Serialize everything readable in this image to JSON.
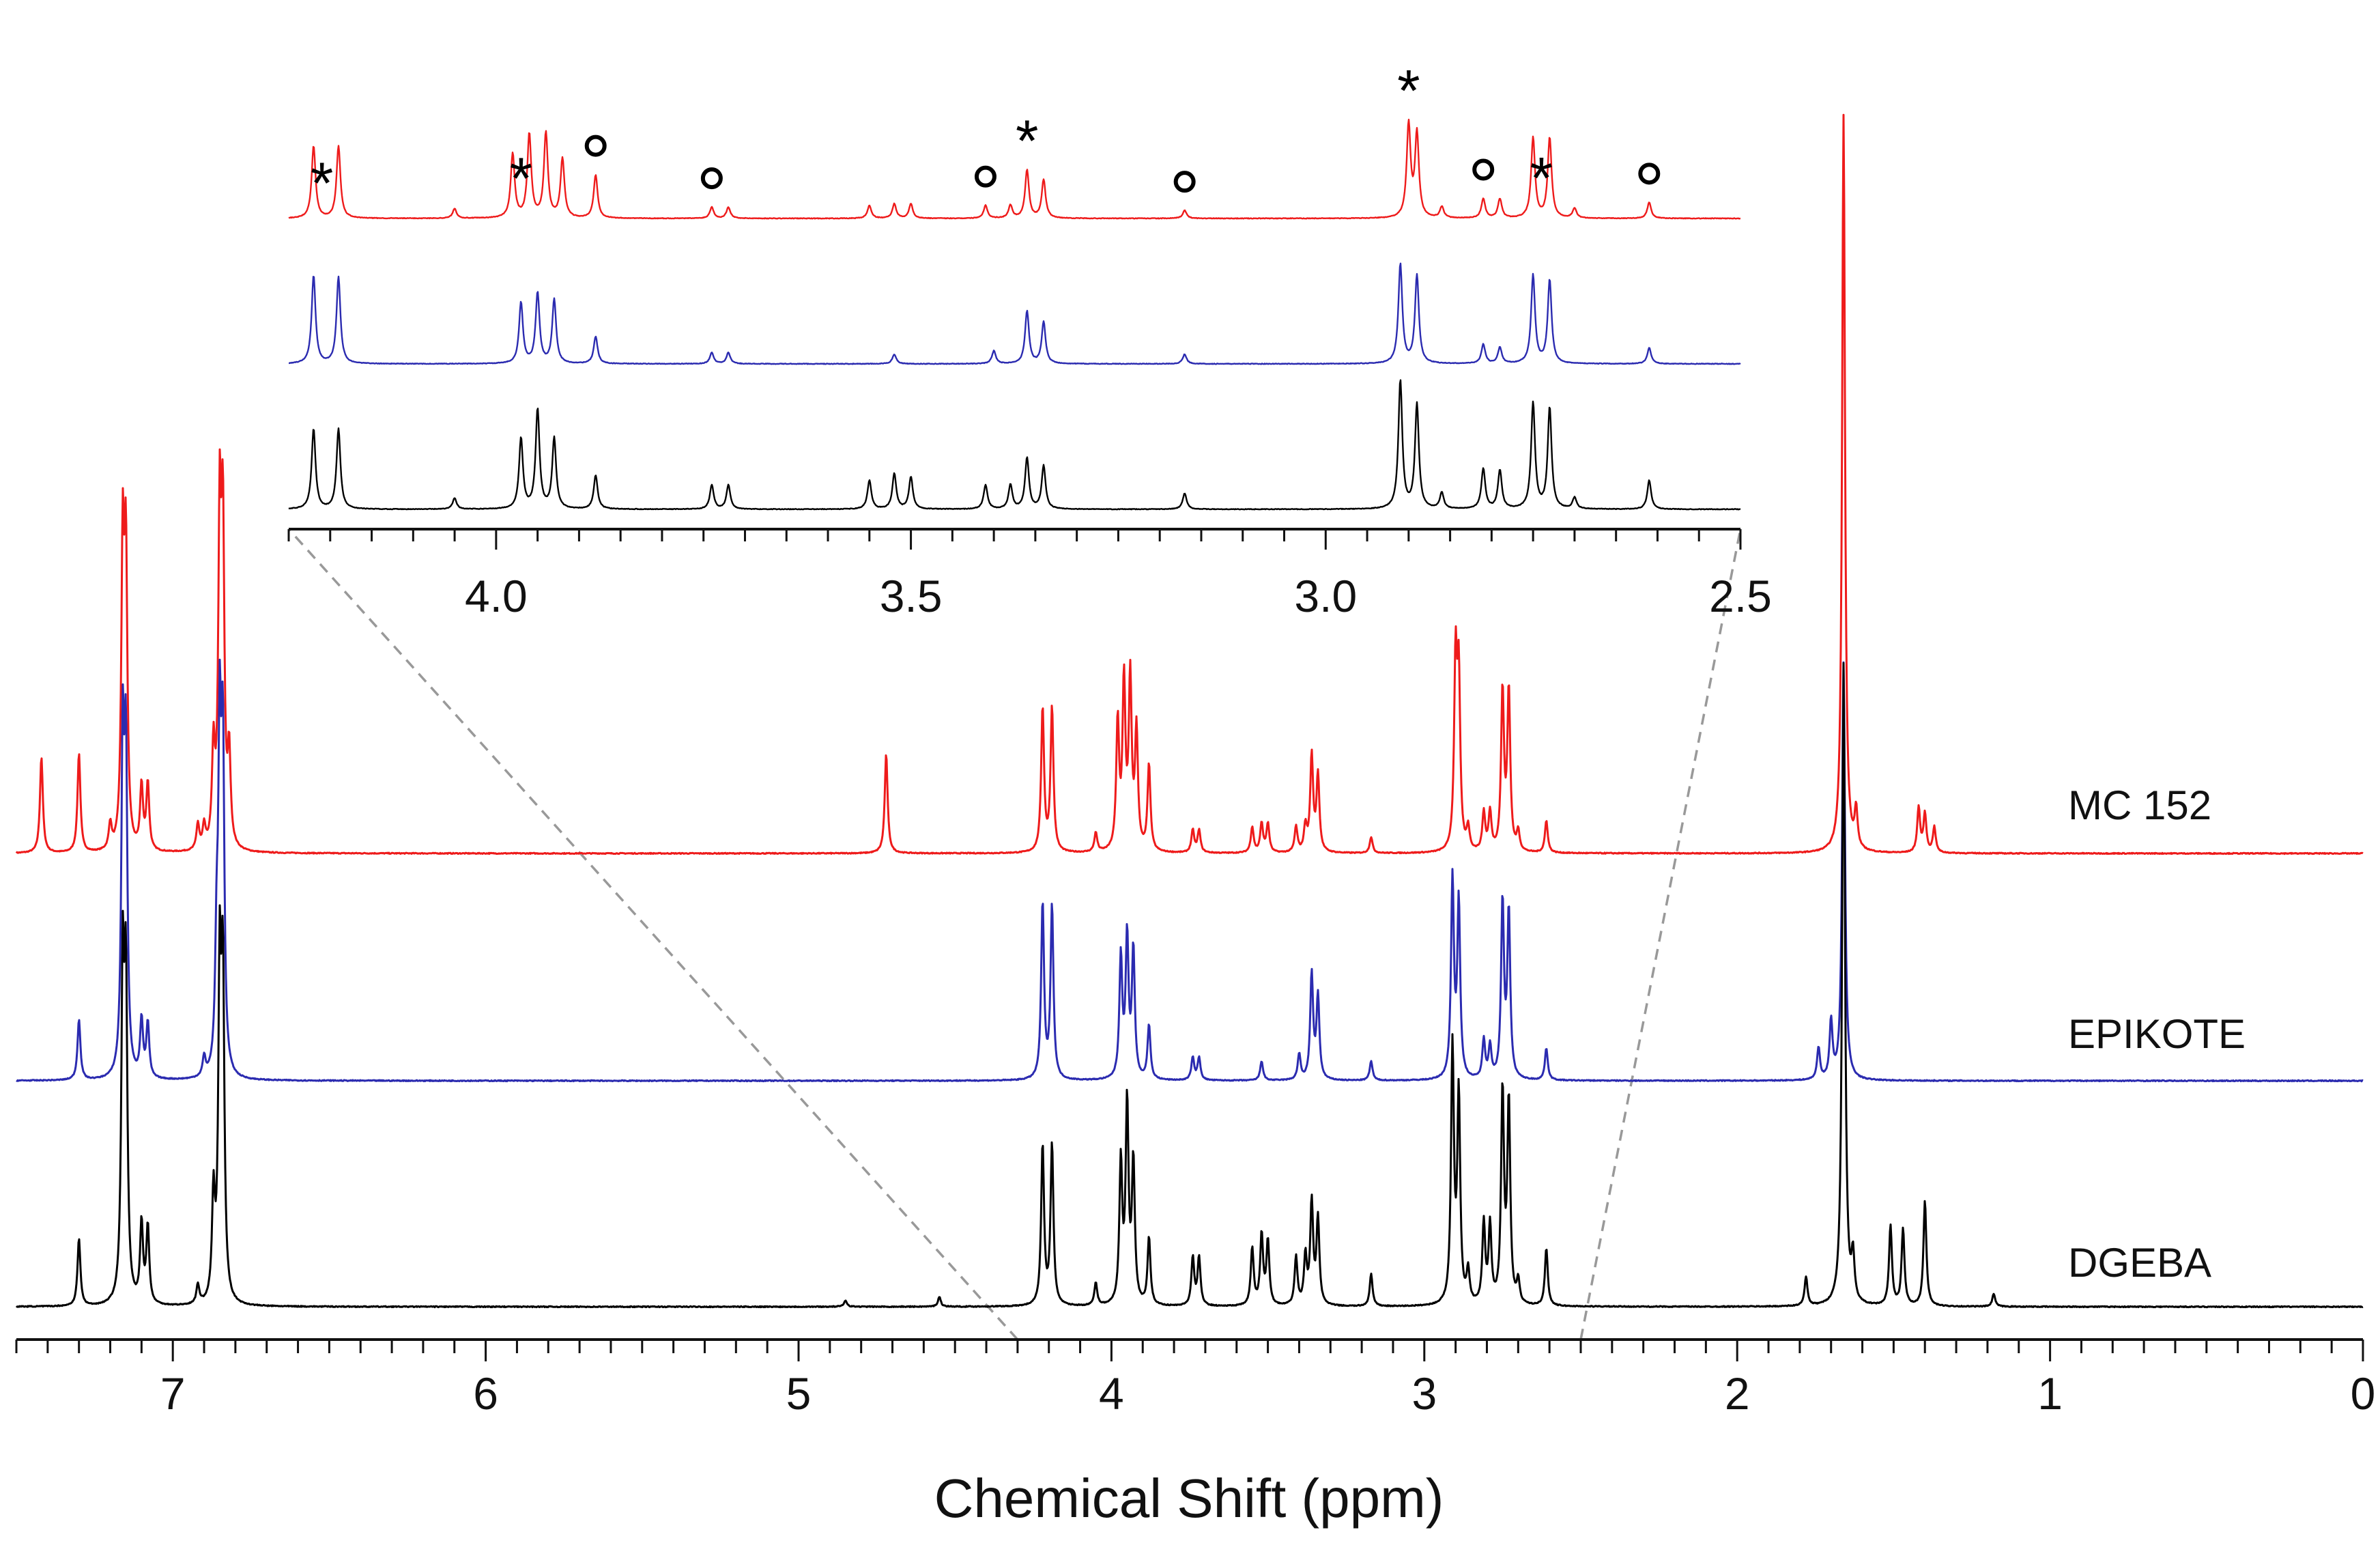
{
  "chart_data": {
    "type": "line",
    "title": "",
    "xlabel": "Chemical Shift (ppm)",
    "ylabel": "",
    "x_reversed": true,
    "xlim": [
      7.5,
      0
    ],
    "x_ticks": [
      "7",
      "6",
      "5",
      "4",
      "3",
      "2",
      "1",
      "0"
    ],
    "x_tick_values": [
      7,
      6,
      5,
      4,
      3,
      2,
      1,
      0
    ],
    "series": [
      {
        "name": "MC 152",
        "color": "#ee1b1b",
        "peaks": [
          {
            "x": 7.42,
            "h": 0.3
          },
          {
            "x": 7.3,
            "h": 0.31
          },
          {
            "x": 7.2,
            "h": 0.08
          },
          {
            "x": 7.16,
            "h": 0.92
          },
          {
            "x": 7.15,
            "h": 0.88
          },
          {
            "x": 7.1,
            "h": 0.2
          },
          {
            "x": 7.08,
            "h": 0.21
          },
          {
            "x": 6.92,
            "h": 0.08
          },
          {
            "x": 6.9,
            "h": 0.07
          },
          {
            "x": 6.87,
            "h": 0.3
          },
          {
            "x": 6.85,
            "h": 1.0
          },
          {
            "x": 6.84,
            "h": 0.96
          },
          {
            "x": 6.82,
            "h": 0.28
          },
          {
            "x": 4.72,
            "h": 0.31
          },
          {
            "x": 4.22,
            "h": 0.45
          },
          {
            "x": 4.19,
            "h": 0.45
          },
          {
            "x": 4.05,
            "h": 0.06
          },
          {
            "x": 3.98,
            "h": 0.4
          },
          {
            "x": 3.96,
            "h": 0.52
          },
          {
            "x": 3.94,
            "h": 0.53
          },
          {
            "x": 3.92,
            "h": 0.37
          },
          {
            "x": 3.88,
            "h": 0.27
          },
          {
            "x": 3.74,
            "h": 0.07
          },
          {
            "x": 3.72,
            "h": 0.07
          },
          {
            "x": 3.55,
            "h": 0.08
          },
          {
            "x": 3.52,
            "h": 0.09
          },
          {
            "x": 3.5,
            "h": 0.09
          },
          {
            "x": 3.41,
            "h": 0.08
          },
          {
            "x": 3.38,
            "h": 0.08
          },
          {
            "x": 3.36,
            "h": 0.3
          },
          {
            "x": 3.34,
            "h": 0.24
          },
          {
            "x": 3.17,
            "h": 0.05
          },
          {
            "x": 2.9,
            "h": 0.58
          },
          {
            "x": 2.89,
            "h": 0.52
          },
          {
            "x": 2.86,
            "h": 0.07
          },
          {
            "x": 2.81,
            "h": 0.12
          },
          {
            "x": 2.79,
            "h": 0.12
          },
          {
            "x": 2.75,
            "h": 0.5
          },
          {
            "x": 2.73,
            "h": 0.5
          },
          {
            "x": 2.7,
            "h": 0.06
          },
          {
            "x": 2.61,
            "h": 0.1
          },
          {
            "x": 1.66,
            "h": 2.3
          },
          {
            "x": 1.62,
            "h": 0.12
          },
          {
            "x": 1.42,
            "h": 0.14
          },
          {
            "x": 1.4,
            "h": 0.12
          },
          {
            "x": 1.37,
            "h": 0.08
          }
        ]
      },
      {
        "name": "EPIKOTE",
        "color": "#2b2bb0",
        "peaks": [
          {
            "x": 7.3,
            "h": 0.19
          },
          {
            "x": 7.16,
            "h": 1.0
          },
          {
            "x": 7.15,
            "h": 0.96
          },
          {
            "x": 7.1,
            "h": 0.18
          },
          {
            "x": 7.08,
            "h": 0.17
          },
          {
            "x": 6.9,
            "h": 0.06
          },
          {
            "x": 6.86,
            "h": 0.35
          },
          {
            "x": 6.85,
            "h": 1.0
          },
          {
            "x": 6.84,
            "h": 0.98
          },
          {
            "x": 4.22,
            "h": 0.55
          },
          {
            "x": 4.19,
            "h": 0.54
          },
          {
            "x": 3.97,
            "h": 0.38
          },
          {
            "x": 3.95,
            "h": 0.44
          },
          {
            "x": 3.93,
            "h": 0.4
          },
          {
            "x": 3.88,
            "h": 0.17
          },
          {
            "x": 3.74,
            "h": 0.07
          },
          {
            "x": 3.72,
            "h": 0.07
          },
          {
            "x": 3.52,
            "h": 0.06
          },
          {
            "x": 3.4,
            "h": 0.08
          },
          {
            "x": 3.36,
            "h": 0.33
          },
          {
            "x": 3.34,
            "h": 0.26
          },
          {
            "x": 3.17,
            "h": 0.06
          },
          {
            "x": 2.91,
            "h": 0.62
          },
          {
            "x": 2.89,
            "h": 0.55
          },
          {
            "x": 2.81,
            "h": 0.12
          },
          {
            "x": 2.79,
            "h": 0.1
          },
          {
            "x": 2.75,
            "h": 0.55
          },
          {
            "x": 2.73,
            "h": 0.52
          },
          {
            "x": 2.61,
            "h": 0.1
          },
          {
            "x": 1.74,
            "h": 0.1
          },
          {
            "x": 1.7,
            "h": 0.18
          },
          {
            "x": 1.66,
            "h": 1.3
          }
        ]
      },
      {
        "name": "DGEBA",
        "color": "#000000",
        "peaks": [
          {
            "x": 7.3,
            "h": 0.21
          },
          {
            "x": 7.16,
            "h": 1.0
          },
          {
            "x": 7.15,
            "h": 0.95
          },
          {
            "x": 7.1,
            "h": 0.25
          },
          {
            "x": 7.08,
            "h": 0.24
          },
          {
            "x": 6.92,
            "h": 0.06
          },
          {
            "x": 6.87,
            "h": 0.32
          },
          {
            "x": 6.85,
            "h": 1.0
          },
          {
            "x": 6.84,
            "h": 0.97
          },
          {
            "x": 4.85,
            "h": 0.02
          },
          {
            "x": 4.55,
            "h": 0.03
          },
          {
            "x": 4.22,
            "h": 0.5
          },
          {
            "x": 4.19,
            "h": 0.5
          },
          {
            "x": 4.05,
            "h": 0.07
          },
          {
            "x": 3.97,
            "h": 0.44
          },
          {
            "x": 3.95,
            "h": 0.62
          },
          {
            "x": 3.93,
            "h": 0.44
          },
          {
            "x": 3.88,
            "h": 0.21
          },
          {
            "x": 3.74,
            "h": 0.15
          },
          {
            "x": 3.72,
            "h": 0.15
          },
          {
            "x": 3.55,
            "h": 0.18
          },
          {
            "x": 3.52,
            "h": 0.22
          },
          {
            "x": 3.5,
            "h": 0.2
          },
          {
            "x": 3.41,
            "h": 0.15
          },
          {
            "x": 3.38,
            "h": 0.15
          },
          {
            "x": 3.36,
            "h": 0.32
          },
          {
            "x": 3.34,
            "h": 0.27
          },
          {
            "x": 3.17,
            "h": 0.1
          },
          {
            "x": 2.91,
            "h": 0.8
          },
          {
            "x": 2.89,
            "h": 0.65
          },
          {
            "x": 2.86,
            "h": 0.1
          },
          {
            "x": 2.81,
            "h": 0.25
          },
          {
            "x": 2.79,
            "h": 0.24
          },
          {
            "x": 2.75,
            "h": 0.66
          },
          {
            "x": 2.73,
            "h": 0.63
          },
          {
            "x": 2.7,
            "h": 0.07
          },
          {
            "x": 2.61,
            "h": 0.18
          },
          {
            "x": 1.78,
            "h": 0.09
          },
          {
            "x": 1.66,
            "h": 2.0
          },
          {
            "x": 1.63,
            "h": 0.14
          },
          {
            "x": 1.51,
            "h": 0.25
          },
          {
            "x": 1.47,
            "h": 0.24
          },
          {
            "x": 1.4,
            "h": 0.33
          },
          {
            "x": 1.18,
            "h": 0.04
          }
        ]
      }
    ],
    "inset": {
      "type": "line",
      "xlim": [
        4.25,
        2.5
      ],
      "x_reversed": true,
      "x_ticks": [
        "4.0",
        "3.5",
        "3.0",
        "2.5"
      ],
      "x_tick_values": [
        4.0,
        3.5,
        3.0,
        2.5
      ],
      "annotations": [
        {
          "x": 4.21,
          "symbol": "*"
        },
        {
          "x": 3.97,
          "symbol": "*"
        },
        {
          "x": 3.88,
          "symbol": "o"
        },
        {
          "x": 3.74,
          "symbol": "o"
        },
        {
          "x": 3.41,
          "symbol": "o"
        },
        {
          "x": 3.36,
          "symbol": "*"
        },
        {
          "x": 3.17,
          "symbol": "o"
        },
        {
          "x": 2.9,
          "symbol": "*"
        },
        {
          "x": 2.81,
          "symbol": "o"
        },
        {
          "x": 2.74,
          "symbol": "*"
        },
        {
          "x": 2.61,
          "symbol": "o"
        }
      ],
      "zoom_range": [
        4.3,
        2.5
      ]
    }
  }
}
